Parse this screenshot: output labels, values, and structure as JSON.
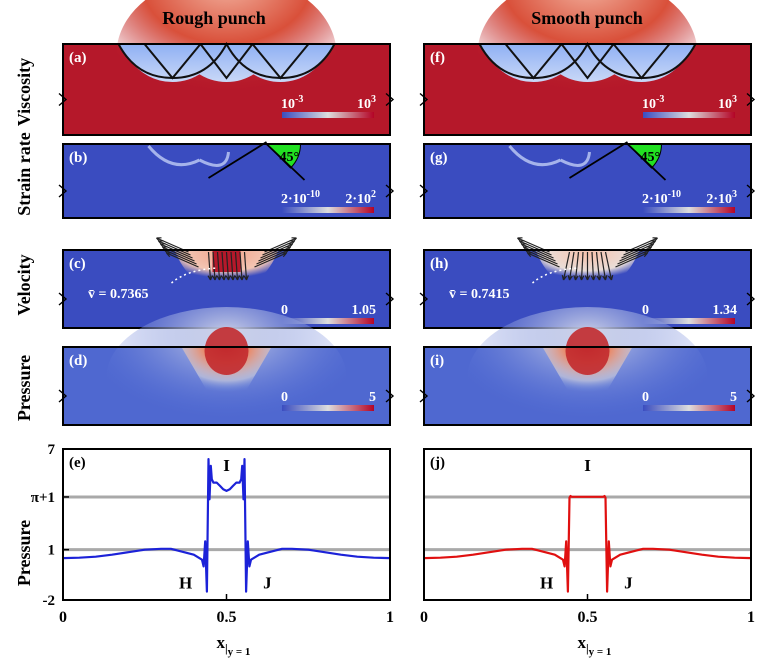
{
  "column_titles": [
    "Rough punch",
    "Smooth punch"
  ],
  "row_labels": [
    "Viscosity",
    "Strain rate",
    "Velocity",
    "Pressure",
    "Pressure"
  ],
  "colors": {
    "field_red": "#b5182a",
    "field_blue": "#3a4cc0",
    "punch_green": "#22e022",
    "line_rough": "#1c22d8",
    "line_smooth": "#e01010",
    "reference_line": "#a9a9a9"
  },
  "panels": {
    "a": {
      "label": "(a)",
      "colorbar": [
        "10",
        "-3",
        "10",
        "3"
      ]
    },
    "b": {
      "label": "(b)",
      "colorbar": [
        "2·10",
        "-10",
        "2·10",
        "2"
      ],
      "angle": "45°"
    },
    "c": {
      "label": "(c)",
      "colorbar": [
        "0",
        "1.05"
      ],
      "mean_velocity": "v̄ = 0.7365"
    },
    "d": {
      "label": "(d)",
      "colorbar": [
        "0",
        "5"
      ]
    },
    "f": {
      "label": "(f)",
      "colorbar": [
        "10",
        "-3",
        "10",
        "3"
      ]
    },
    "g": {
      "label": "(g)",
      "colorbar": [
        "2·10",
        "-10",
        "2·10",
        "3"
      ],
      "angle": "45°"
    },
    "h": {
      "label": "(h)",
      "colorbar": [
        "0",
        "1.34"
      ],
      "mean_velocity": "v̄ = 0.7415"
    },
    "i": {
      "label": "(i)",
      "colorbar": [
        "0",
        "5"
      ]
    }
  },
  "chart_data": [
    {
      "type": "line",
      "panel": "(e)",
      "name": "rough",
      "xlabel": "x",
      "xlabel_sub": "y = 1",
      "ylabel": "Pressure",
      "xlim": [
        0,
        1
      ],
      "ylim": [
        -2,
        7
      ],
      "x_ticks": [
        "0",
        "0.5",
        "1"
      ],
      "y_ticks": [
        "-2",
        "1",
        "π+1",
        "7"
      ],
      "y_tick_values": [
        -2,
        1,
        4.1416,
        7
      ],
      "reference_lines": [
        1,
        4.1416
      ],
      "annotations": [
        {
          "text": "I",
          "x": 0.5,
          "y": 5.7
        },
        {
          "text": "H",
          "x": 0.375,
          "y": -1.3
        },
        {
          "text": "J",
          "x": 0.625,
          "y": -1.3
        }
      ],
      "series": [
        {
          "x": [
            0,
            0.05,
            0.1,
            0.15,
            0.2,
            0.25,
            0.3,
            0.33,
            0.36,
            0.4,
            0.425,
            0.43,
            0.435,
            0.44,
            0.445,
            0.448,
            0.452,
            0.455,
            0.46,
            0.47,
            0.48,
            0.49,
            0.5,
            0.51,
            0.52,
            0.53,
            0.54,
            0.545,
            0.548,
            0.552,
            0.555,
            0.56,
            0.565,
            0.57,
            0.575,
            0.6,
            0.64,
            0.67,
            0.7,
            0.75,
            0.8,
            0.85,
            0.9,
            0.95,
            1
          ],
          "y": [
            0.5,
            0.52,
            0.58,
            0.7,
            0.85,
            1.0,
            1.05,
            1.05,
            0.9,
            0.7,
            0.4,
            0.0,
            1.5,
            -1.5,
            6.4,
            4.0,
            6.0,
            5.2,
            5.0,
            5.0,
            4.8,
            4.6,
            4.5,
            4.6,
            4.8,
            5.0,
            5.0,
            5.2,
            6.0,
            4.0,
            6.4,
            -1.5,
            1.5,
            0.0,
            0.4,
            0.7,
            0.9,
            1.05,
            1.05,
            1.0,
            0.85,
            0.7,
            0.58,
            0.52,
            0.5
          ]
        }
      ]
    },
    {
      "type": "line",
      "panel": "(j)",
      "name": "smooth",
      "xlabel": "x",
      "xlabel_sub": "y = 1",
      "xlim": [
        0,
        1
      ],
      "ylim": [
        -2,
        7
      ],
      "x_ticks": [
        "0",
        "0.5",
        "1"
      ],
      "reference_lines": [
        1,
        4.1416
      ],
      "annotations": [
        {
          "text": "I",
          "x": 0.5,
          "y": 5.7
        },
        {
          "text": "H",
          "x": 0.375,
          "y": -1.3
        },
        {
          "text": "J",
          "x": 0.625,
          "y": -1.3
        }
      ],
      "series": [
        {
          "x": [
            0,
            0.05,
            0.1,
            0.15,
            0.2,
            0.25,
            0.3,
            0.33,
            0.36,
            0.4,
            0.425,
            0.43,
            0.435,
            0.44,
            0.445,
            0.448,
            0.452,
            0.46,
            0.5,
            0.54,
            0.548,
            0.552,
            0.555,
            0.56,
            0.565,
            0.57,
            0.575,
            0.6,
            0.64,
            0.67,
            0.7,
            0.75,
            0.8,
            0.85,
            0.9,
            0.95,
            1
          ],
          "y": [
            0.5,
            0.52,
            0.58,
            0.7,
            0.85,
            1.0,
            1.05,
            1.05,
            0.9,
            0.7,
            0.4,
            0.0,
            1.5,
            -1.5,
            4.1,
            4.2,
            4.15,
            4.15,
            4.15,
            4.15,
            4.15,
            4.2,
            4.1,
            -1.5,
            1.5,
            0.0,
            0.4,
            0.7,
            0.9,
            1.05,
            1.05,
            1.0,
            0.85,
            0.7,
            0.58,
            0.52,
            0.5
          ]
        }
      ]
    }
  ]
}
